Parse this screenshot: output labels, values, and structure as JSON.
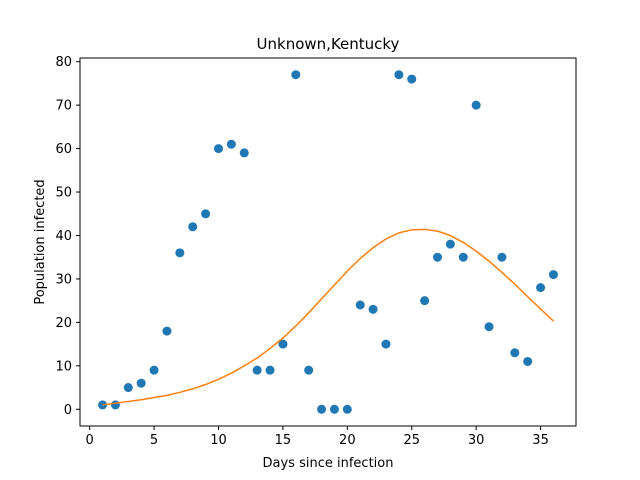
{
  "chart_data": {
    "type": "scatter",
    "title": "Unknown,Kentucky",
    "xlabel": "Days since infection",
    "ylabel": "Population infected",
    "xlim": [
      -0.75,
      37.75
    ],
    "ylim": [
      -3.85,
      80.85
    ],
    "xticks": [
      0,
      5,
      10,
      15,
      20,
      25,
      30,
      35
    ],
    "yticks": [
      0,
      10,
      20,
      30,
      40,
      50,
      60,
      70,
      80
    ],
    "grid": false,
    "legend": "none",
    "series": [
      {
        "kind": "scatter",
        "color": "#1f77b4",
        "points": [
          [
            1,
            1
          ],
          [
            2,
            1
          ],
          [
            3,
            5
          ],
          [
            4,
            6
          ],
          [
            5,
            9
          ],
          [
            6,
            18
          ],
          [
            7,
            36
          ],
          [
            8,
            42
          ],
          [
            9,
            45
          ],
          [
            10,
            60
          ],
          [
            11,
            61
          ],
          [
            12,
            59
          ],
          [
            13,
            9
          ],
          [
            14,
            9
          ],
          [
            15,
            15
          ],
          [
            16,
            77
          ],
          [
            17,
            9
          ],
          [
            18,
            0
          ],
          [
            19,
            0
          ],
          [
            20,
            0
          ],
          [
            21,
            24
          ],
          [
            22,
            23
          ],
          [
            23,
            15
          ],
          [
            24,
            77
          ],
          [
            25,
            76
          ],
          [
            26,
            25
          ],
          [
            27,
            35
          ],
          [
            28,
            38
          ],
          [
            29,
            35
          ],
          [
            30,
            70
          ],
          [
            31,
            19
          ],
          [
            32,
            35
          ],
          [
            33,
            13
          ],
          [
            34,
            11
          ],
          [
            35,
            28
          ],
          [
            36,
            31
          ]
        ]
      },
      {
        "kind": "line",
        "color": "#ff7f0e",
        "points": [
          [
            1,
            1.0
          ],
          [
            2,
            1.4
          ],
          [
            3,
            1.8
          ],
          [
            4,
            2.2
          ],
          [
            5,
            2.7
          ],
          [
            6,
            3.2
          ],
          [
            7,
            3.9
          ],
          [
            8,
            4.7
          ],
          [
            9,
            5.7
          ],
          [
            10,
            6.9
          ],
          [
            11,
            8.3
          ],
          [
            12,
            10.0
          ],
          [
            13,
            11.8
          ],
          [
            14,
            14.0
          ],
          [
            15,
            16.4
          ],
          [
            16,
            19.2
          ],
          [
            17,
            22.2
          ],
          [
            18,
            25.4
          ],
          [
            19,
            28.6
          ],
          [
            20,
            31.8
          ],
          [
            21,
            34.7
          ],
          [
            22,
            37.2
          ],
          [
            23,
            39.2
          ],
          [
            24,
            40.6
          ],
          [
            25,
            41.3
          ],
          [
            26,
            41.4
          ],
          [
            27,
            41.0
          ],
          [
            28,
            40.0
          ],
          [
            29,
            38.4
          ],
          [
            30,
            36.4
          ],
          [
            31,
            34.1
          ],
          [
            32,
            31.5
          ],
          [
            33,
            28.8
          ],
          [
            34,
            25.9
          ],
          [
            35,
            23.1
          ],
          [
            36,
            20.3
          ]
        ]
      }
    ]
  }
}
